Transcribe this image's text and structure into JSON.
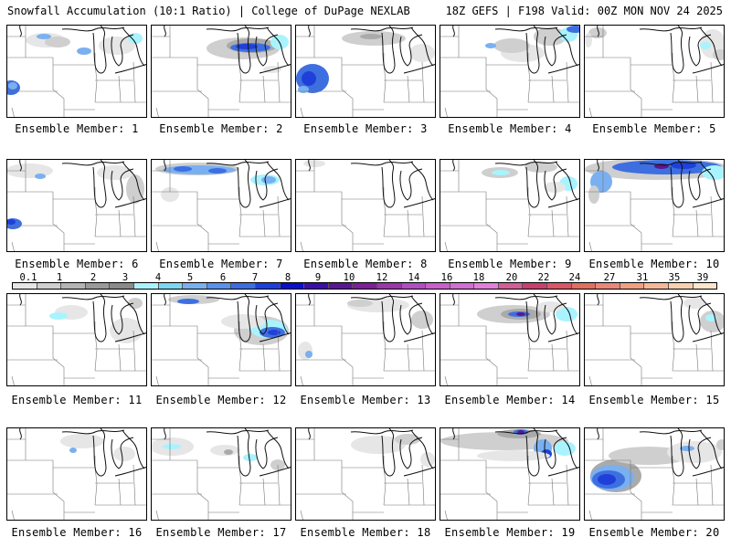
{
  "header": {
    "title": "Snowfall Accumulation (10:1 Ratio) | College of DuPage NEXLAB",
    "run_info": "18Z GEFS | F198 Valid: 00Z MON NOV 24 2025"
  },
  "members": [
    {
      "label": "Ensemble Member: 1"
    },
    {
      "label": "Ensemble Member: 2"
    },
    {
      "label": "Ensemble Member: 3"
    },
    {
      "label": "Ensemble Member: 4"
    },
    {
      "label": "Ensemble Member: 5"
    },
    {
      "label": "Ensemble Member: 6"
    },
    {
      "label": "Ensemble Member: 7"
    },
    {
      "label": "Ensemble Member: 8"
    },
    {
      "label": "Ensemble Member: 9"
    },
    {
      "label": "Ensemble Member: 10"
    },
    {
      "label": "Ensemble Member: 11"
    },
    {
      "label": "Ensemble Member: 12"
    },
    {
      "label": "Ensemble Member: 13"
    },
    {
      "label": "Ensemble Member: 14"
    },
    {
      "label": "Ensemble Member: 15"
    },
    {
      "label": "Ensemble Member: 16"
    },
    {
      "label": "Ensemble Member: 17"
    },
    {
      "label": "Ensemble Member: 18"
    },
    {
      "label": "Ensemble Member: 19"
    },
    {
      "label": "Ensemble Member: 20"
    }
  ],
  "color_scale": {
    "labels": [
      "0.1",
      "1",
      "2",
      "3",
      "4",
      "5",
      "6",
      "7",
      "8",
      "9",
      "10",
      "12",
      "14",
      "16",
      "18",
      "20",
      "22",
      "24",
      "27",
      "31",
      "35",
      "39"
    ],
    "colors": [
      "#e6e6e6",
      "#d0d0d0",
      "#b4b4b4",
      "#9a9a9a",
      "#8a8a8a",
      "#a9f3ff",
      "#7fd6f0",
      "#7ab0f0",
      "#5b92ea",
      "#3d6fe0",
      "#1f40d8",
      "#0a10c8",
      "#3a10a8",
      "#5a1890",
      "#7a2098",
      "#9a38a8",
      "#b050c0",
      "#c860c8",
      "#d070d0",
      "#e080d8",
      "#d26098",
      "#c84070",
      "#d85868",
      "#e07060",
      "#e88878",
      "#f0a080",
      "#f4b898",
      "#f8d0b0",
      "#fde6cc"
    ]
  }
}
